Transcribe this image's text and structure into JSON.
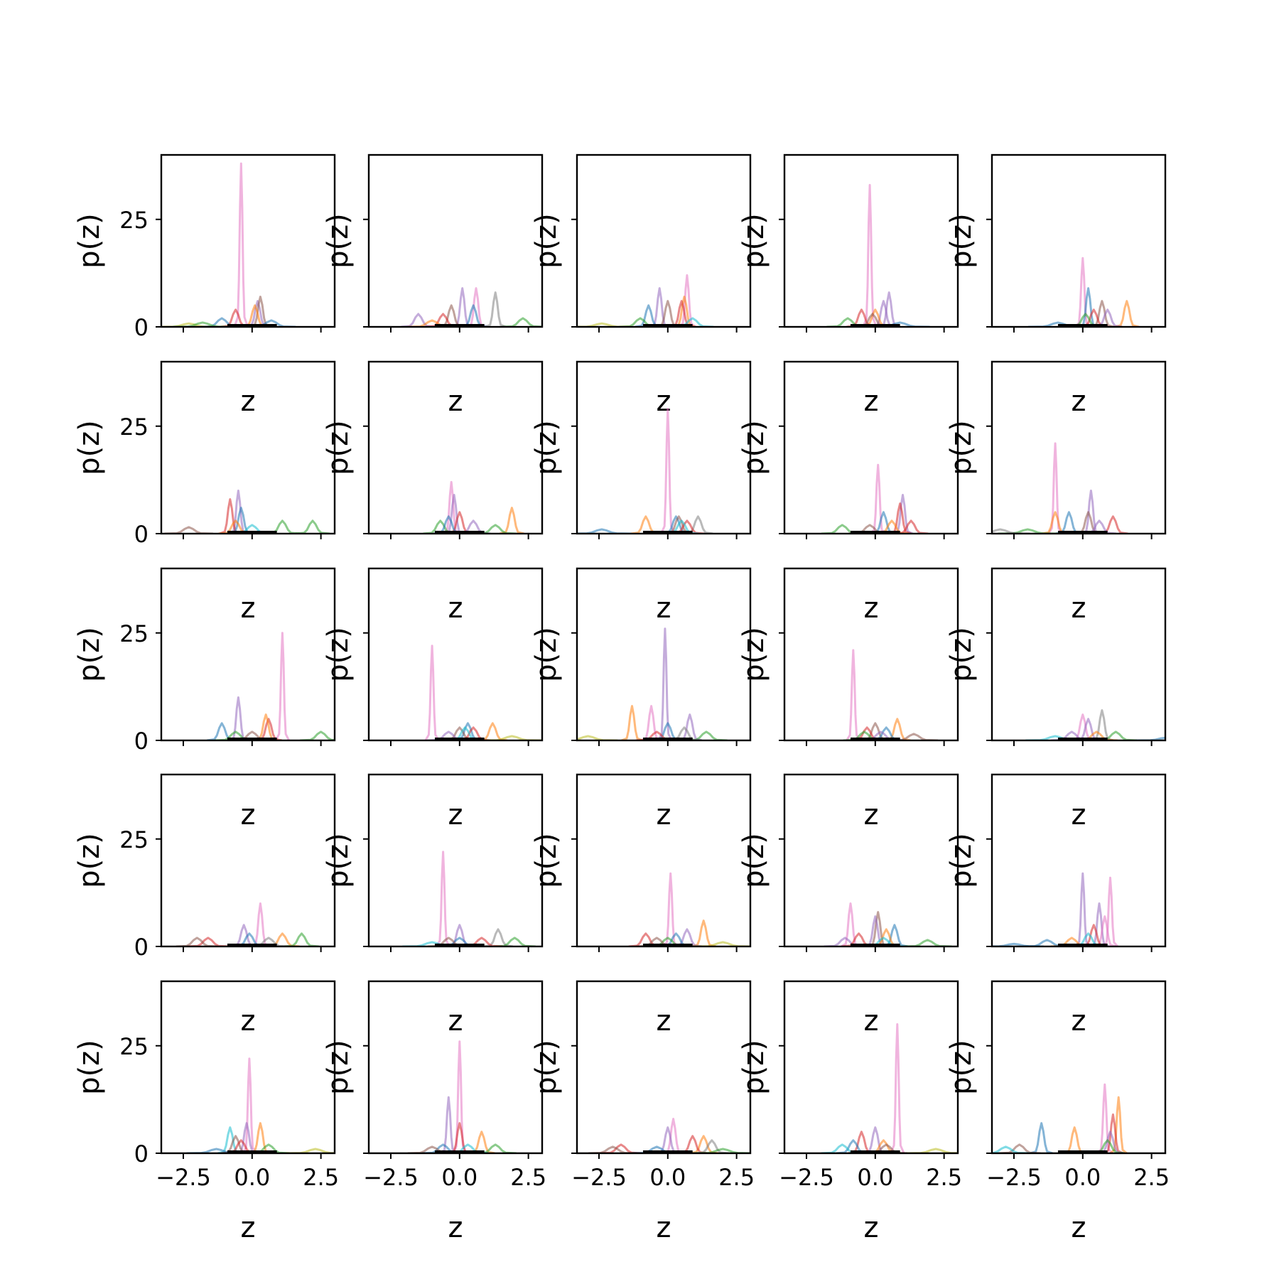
{
  "chart_data": {
    "type": "line",
    "layout": "5x5 grid of small multiples",
    "xlabel": "z",
    "ylabel": "p(z)",
    "xlim": [
      -3.3,
      3.0
    ],
    "ylim": [
      0,
      40
    ],
    "xticks": [
      -2.5,
      0.0,
      2.5
    ],
    "xtick_labels": [
      "−2.5",
      "0.0",
      "2.5"
    ],
    "yticks": [
      0,
      25
    ],
    "ytick_labels": [
      "0",
      "25"
    ],
    "colors": [
      "#1f77b4",
      "#ff7f0e",
      "#2ca02c",
      "#d62728",
      "#9467bd",
      "#8c564b",
      "#e377c2",
      "#7f7f7f",
      "#bcbd22",
      "#17becf"
    ],
    "panels": [
      {
        "peaks": [
          [
            -0.4,
            38,
            6
          ],
          [
            0.2,
            6,
            4
          ],
          [
            0.3,
            7,
            5
          ],
          [
            -0.6,
            4,
            3
          ],
          [
            0.1,
            5,
            1
          ],
          [
            -1.1,
            2,
            0
          ],
          [
            -2.3,
            0.8,
            8
          ],
          [
            -1.8,
            1,
            2
          ],
          [
            0.7,
            1.5,
            0
          ]
        ]
      },
      {
        "peaks": [
          [
            0.6,
            9,
            6
          ],
          [
            0.1,
            9,
            4
          ],
          [
            1.3,
            8,
            7
          ],
          [
            -0.3,
            5,
            5
          ],
          [
            0.5,
            5,
            0
          ],
          [
            -1.5,
            3,
            4
          ],
          [
            -0.6,
            3,
            3
          ],
          [
            2.3,
            2,
            2
          ],
          [
            -1.0,
            1.5,
            1
          ]
        ]
      },
      {
        "peaks": [
          [
            0.7,
            12,
            6
          ],
          [
            -0.3,
            9,
            4
          ],
          [
            0.6,
            7,
            1
          ],
          [
            0.5,
            6,
            3
          ],
          [
            -0.7,
            5,
            0
          ],
          [
            0.0,
            6,
            5
          ],
          [
            -1.0,
            2,
            2
          ],
          [
            -2.4,
            0.8,
            8
          ],
          [
            0.9,
            2,
            9
          ]
        ]
      },
      {
        "peaks": [
          [
            -0.2,
            33,
            6
          ],
          [
            0.5,
            8,
            4
          ],
          [
            0.3,
            6,
            4
          ],
          [
            0.0,
            4,
            1
          ],
          [
            -0.5,
            4,
            3
          ],
          [
            -0.1,
            3,
            5
          ],
          [
            -1.0,
            2,
            2
          ],
          [
            0.9,
            1,
            0
          ]
        ]
      },
      {
        "peaks": [
          [
            0.0,
            16,
            6
          ],
          [
            0.2,
            9,
            0
          ],
          [
            0.7,
            6,
            5
          ],
          [
            1.6,
            6,
            1
          ],
          [
            0.4,
            4,
            3
          ],
          [
            0.9,
            4,
            4
          ],
          [
            -0.9,
            1,
            0
          ],
          [
            0.1,
            3,
            2
          ]
        ]
      },
      {
        "peaks": [
          [
            -0.5,
            10,
            4
          ],
          [
            -0.8,
            8,
            3
          ],
          [
            -0.4,
            6,
            0
          ],
          [
            1.1,
            3,
            2
          ],
          [
            2.2,
            3,
            2
          ],
          [
            -2.3,
            1.5,
            5
          ],
          [
            0.0,
            2,
            9
          ],
          [
            -0.6,
            3,
            1
          ]
        ]
      },
      {
        "peaks": [
          [
            -0.3,
            12,
            6
          ],
          [
            -0.2,
            9,
            4
          ],
          [
            1.9,
            6,
            1
          ],
          [
            0.0,
            5,
            3
          ],
          [
            0.5,
            3,
            4
          ],
          [
            -0.7,
            3,
            2
          ],
          [
            1.3,
            2,
            2
          ],
          [
            -0.4,
            4,
            0
          ]
        ]
      },
      {
        "peaks": [
          [
            0.0,
            29,
            6
          ],
          [
            0.3,
            4,
            0
          ],
          [
            0.4,
            4,
            5
          ],
          [
            1.1,
            4,
            7
          ],
          [
            -0.8,
            4,
            1
          ],
          [
            0.7,
            3,
            3
          ],
          [
            -2.4,
            1,
            0
          ],
          [
            0.5,
            3,
            9
          ]
        ]
      },
      {
        "peaks": [
          [
            0.1,
            16,
            6
          ],
          [
            1.0,
            9,
            4
          ],
          [
            0.9,
            7,
            3
          ],
          [
            0.3,
            5,
            0
          ],
          [
            -1.2,
            2,
            2
          ],
          [
            0.6,
            3,
            1
          ],
          [
            -0.2,
            2,
            5
          ],
          [
            1.3,
            3,
            3
          ]
        ]
      },
      {
        "peaks": [
          [
            -1.0,
            21,
            6
          ],
          [
            0.3,
            10,
            4
          ],
          [
            -0.5,
            5,
            0
          ],
          [
            0.2,
            5,
            5
          ],
          [
            1.1,
            4,
            3
          ],
          [
            -1.0,
            5,
            1
          ],
          [
            -2.0,
            1,
            2
          ],
          [
            0.6,
            3,
            4
          ],
          [
            -3.0,
            1,
            7
          ]
        ]
      },
      {
        "peaks": [
          [
            1.1,
            25,
            6
          ],
          [
            -0.5,
            10,
            4
          ],
          [
            -1.1,
            4,
            0
          ],
          [
            0.6,
            5,
            3
          ],
          [
            0.5,
            6,
            1
          ],
          [
            -0.6,
            2,
            2
          ],
          [
            2.5,
            2,
            2
          ],
          [
            0.0,
            2,
            5
          ]
        ]
      },
      {
        "peaks": [
          [
            -1.0,
            22,
            6
          ],
          [
            1.2,
            4,
            1
          ],
          [
            0.3,
            4,
            0
          ],
          [
            0.0,
            3,
            5
          ],
          [
            0.5,
            3,
            3
          ],
          [
            -0.4,
            2,
            4
          ],
          [
            1.9,
            1,
            8
          ],
          [
            0.2,
            3,
            9
          ]
        ]
      },
      {
        "peaks": [
          [
            -0.1,
            26,
            4
          ],
          [
            -0.6,
            8,
            6
          ],
          [
            -1.3,
            8,
            1
          ],
          [
            0.8,
            6,
            4
          ],
          [
            0.0,
            4,
            0
          ],
          [
            1.4,
            2,
            2
          ],
          [
            0.6,
            3,
            7
          ],
          [
            -0.4,
            2,
            3
          ],
          [
            -2.9,
            1,
            8
          ]
        ]
      },
      {
        "peaks": [
          [
            -0.8,
            21,
            6
          ],
          [
            0.8,
            5,
            1
          ],
          [
            0.0,
            4,
            5
          ],
          [
            0.4,
            3,
            0
          ],
          [
            -0.3,
            3,
            3
          ],
          [
            1.4,
            1.5,
            5
          ],
          [
            0.2,
            2,
            4
          ],
          [
            -0.4,
            2,
            2
          ]
        ]
      },
      {
        "peaks": [
          [
            0.0,
            6,
            6
          ],
          [
            0.7,
            7,
            7
          ],
          [
            -0.4,
            2,
            4
          ],
          [
            0.2,
            5,
            4
          ],
          [
            1.2,
            2,
            2
          ],
          [
            -1.0,
            1,
            9
          ],
          [
            0.5,
            2,
            1
          ],
          [
            3.0,
            0.6,
            0
          ]
        ]
      },
      {
        "peaks": [
          [
            0.3,
            10,
            6
          ],
          [
            1.1,
            3,
            1
          ],
          [
            1.8,
            3,
            2
          ],
          [
            -1.6,
            2,
            3
          ],
          [
            -2.0,
            2,
            5
          ],
          [
            -0.3,
            5,
            4
          ],
          [
            -0.1,
            3,
            0
          ],
          [
            0.6,
            2,
            7
          ]
        ]
      },
      {
        "peaks": [
          [
            -0.6,
            22,
            6
          ],
          [
            0.0,
            5,
            4
          ],
          [
            1.4,
            4,
            7
          ],
          [
            2.0,
            2,
            2
          ],
          [
            0.0,
            2,
            0
          ],
          [
            -1.0,
            1,
            9
          ],
          [
            0.8,
            2,
            3
          ],
          [
            -0.4,
            2,
            5
          ]
        ]
      },
      {
        "peaks": [
          [
            0.1,
            17,
            6
          ],
          [
            1.3,
            6,
            1
          ],
          [
            0.7,
            4,
            4
          ],
          [
            0.3,
            3,
            0
          ],
          [
            -0.8,
            3,
            3
          ],
          [
            0.0,
            2,
            2
          ],
          [
            2.0,
            1,
            8
          ],
          [
            -0.4,
            2,
            5
          ]
        ]
      },
      {
        "peaks": [
          [
            -0.9,
            10,
            6
          ],
          [
            0.1,
            8,
            5
          ],
          [
            0.0,
            7,
            4
          ],
          [
            0.7,
            5,
            0
          ],
          [
            0.4,
            4,
            1
          ],
          [
            -1.1,
            2,
            4
          ],
          [
            1.9,
            1.5,
            2
          ],
          [
            -0.6,
            3,
            3
          ],
          [
            0.3,
            2,
            9
          ]
        ]
      },
      {
        "peaks": [
          [
            0.0,
            17,
            4
          ],
          [
            1.0,
            16,
            6
          ],
          [
            0.6,
            10,
            4
          ],
          [
            0.8,
            7,
            6
          ],
          [
            0.4,
            5,
            3
          ],
          [
            -0.4,
            2,
            1
          ],
          [
            -1.3,
            1.5,
            0
          ],
          [
            0.2,
            3,
            9
          ],
          [
            -2.5,
            0.6,
            0
          ]
        ]
      },
      {
        "peaks": [
          [
            -0.1,
            22,
            6
          ],
          [
            0.3,
            7,
            1
          ],
          [
            -0.8,
            6,
            9
          ],
          [
            -0.2,
            7,
            4
          ],
          [
            -0.6,
            4,
            5
          ],
          [
            0.6,
            2,
            2
          ],
          [
            2.3,
            1,
            8
          ],
          [
            -0.4,
            3,
            3
          ],
          [
            -1.3,
            1,
            0
          ]
        ]
      },
      {
        "peaks": [
          [
            0.0,
            26,
            6
          ],
          [
            -0.4,
            13,
            4
          ],
          [
            0.0,
            7,
            3
          ],
          [
            0.8,
            5,
            1
          ],
          [
            1.3,
            2,
            2
          ],
          [
            -0.6,
            2,
            0
          ],
          [
            -1.0,
            1.5,
            5
          ],
          [
            0.3,
            2,
            9
          ]
        ]
      },
      {
        "peaks": [
          [
            0.2,
            8,
            6
          ],
          [
            0.0,
            6,
            4
          ],
          [
            1.3,
            4,
            1
          ],
          [
            0.9,
            4,
            3
          ],
          [
            1.6,
            3,
            7
          ],
          [
            -1.7,
            2,
            3
          ],
          [
            -2.0,
            1.5,
            5
          ],
          [
            2.0,
            1,
            2
          ],
          [
            -0.4,
            1.5,
            0
          ]
        ]
      },
      {
        "peaks": [
          [
            0.8,
            30,
            6
          ],
          [
            0.0,
            6,
            4
          ],
          [
            -0.5,
            5,
            3
          ],
          [
            -0.8,
            3,
            0
          ],
          [
            0.3,
            3,
            1
          ],
          [
            -1.2,
            2,
            9
          ],
          [
            2.2,
            1,
            8
          ],
          [
            0.4,
            2,
            5
          ]
        ]
      },
      {
        "peaks": [
          [
            0.8,
            16,
            6
          ],
          [
            1.3,
            13,
            1
          ],
          [
            1.1,
            9,
            3
          ],
          [
            1.0,
            5,
            4
          ],
          [
            -1.5,
            7,
            0
          ],
          [
            -0.3,
            6,
            1
          ],
          [
            -2.3,
            2,
            5
          ],
          [
            -2.8,
            1.5,
            9
          ],
          [
            0.9,
            3,
            2
          ]
        ]
      }
    ]
  }
}
